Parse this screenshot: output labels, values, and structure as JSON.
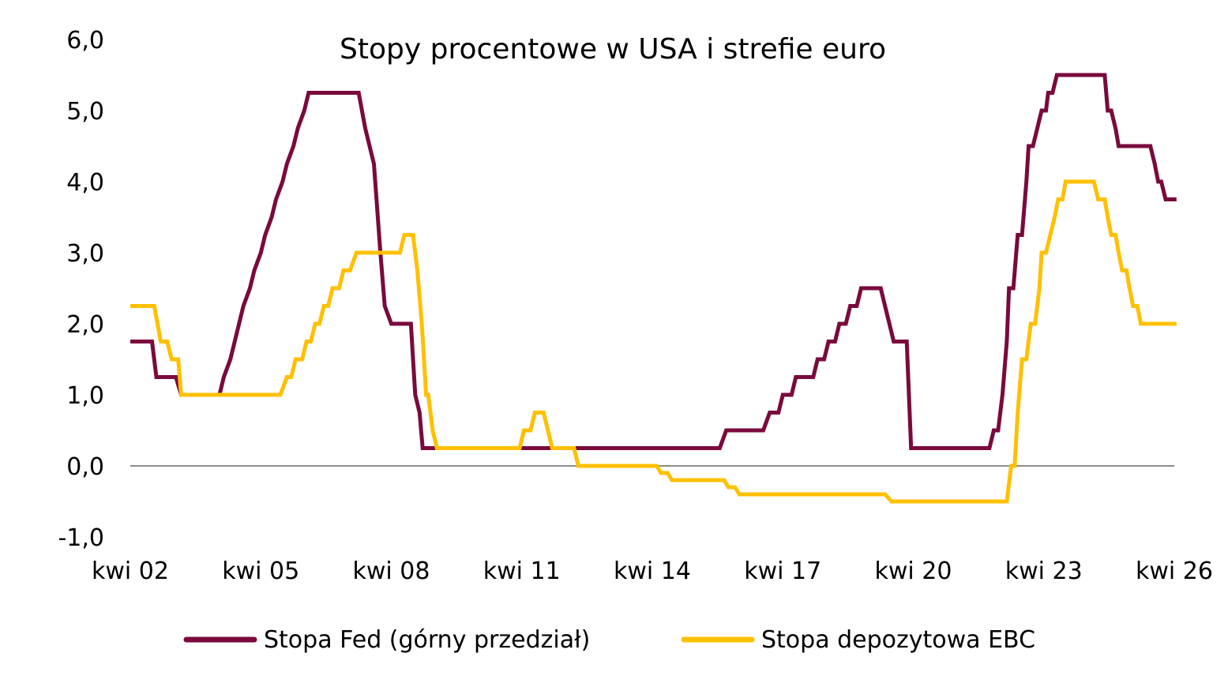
{
  "chart_data": {
    "type": "line",
    "title": "Stopy procentowe w USA i strefie euro",
    "xlabel": "",
    "ylabel": "",
    "ylim": [
      -1.0,
      6.0
    ],
    "yticks": [
      "-1,0",
      "0,0",
      "1,0",
      "2,0",
      "3,0",
      "4,0",
      "5,0",
      "6,0"
    ],
    "xlim": [
      2002.25,
      2026.25
    ],
    "xticks": [
      {
        "x": 2002.25,
        "label": "kwi 02"
      },
      {
        "x": 2005.25,
        "label": "kwi 05"
      },
      {
        "x": 2008.25,
        "label": "kwi 08"
      },
      {
        "x": 2011.25,
        "label": "kwi 11"
      },
      {
        "x": 2014.25,
        "label": "kwi 14"
      },
      {
        "x": 2017.25,
        "label": "kwi 17"
      },
      {
        "x": 2020.25,
        "label": "kwi 20"
      },
      {
        "x": 2023.25,
        "label": "kwi 23"
      },
      {
        "x": 2026.25,
        "label": "kwi 26"
      }
    ],
    "grid": false,
    "legend": "bottom",
    "series": [
      {
        "name": "Stopa Fed (górny przedział)",
        "color": "#7a0a3c",
        "points": [
          [
            2002.25,
            1.75
          ],
          [
            2002.75,
            1.75
          ],
          [
            2002.85,
            1.25
          ],
          [
            2003.3,
            1.25
          ],
          [
            2003.42,
            1.0
          ],
          [
            2004.3,
            1.0
          ],
          [
            2004.4,
            1.25
          ],
          [
            2004.55,
            1.5
          ],
          [
            2004.65,
            1.75
          ],
          [
            2004.75,
            2.0
          ],
          [
            2004.85,
            2.25
          ],
          [
            2005.0,
            2.5
          ],
          [
            2005.1,
            2.75
          ],
          [
            2005.25,
            3.0
          ],
          [
            2005.35,
            3.25
          ],
          [
            2005.5,
            3.5
          ],
          [
            2005.6,
            3.75
          ],
          [
            2005.75,
            4.0
          ],
          [
            2005.85,
            4.25
          ],
          [
            2006.0,
            4.5
          ],
          [
            2006.1,
            4.75
          ],
          [
            2006.25,
            5.0
          ],
          [
            2006.35,
            5.25
          ],
          [
            2007.5,
            5.25
          ],
          [
            2007.65,
            4.75
          ],
          [
            2007.75,
            4.5
          ],
          [
            2007.85,
            4.25
          ],
          [
            2008.0,
            3.0
          ],
          [
            2008.1,
            2.25
          ],
          [
            2008.25,
            2.0
          ],
          [
            2008.7,
            2.0
          ],
          [
            2008.8,
            1.0
          ],
          [
            2008.9,
            0.75
          ],
          [
            2008.97,
            0.25
          ],
          [
            2015.8,
            0.25
          ],
          [
            2015.95,
            0.5
          ],
          [
            2016.8,
            0.5
          ],
          [
            2016.95,
            0.75
          ],
          [
            2017.15,
            0.75
          ],
          [
            2017.25,
            1.0
          ],
          [
            2017.45,
            1.0
          ],
          [
            2017.55,
            1.25
          ],
          [
            2017.95,
            1.25
          ],
          [
            2018.05,
            1.5
          ],
          [
            2018.2,
            1.5
          ],
          [
            2018.3,
            1.75
          ],
          [
            2018.45,
            1.75
          ],
          [
            2018.55,
            2.0
          ],
          [
            2018.7,
            2.0
          ],
          [
            2018.8,
            2.25
          ],
          [
            2018.95,
            2.25
          ],
          [
            2019.05,
            2.5
          ],
          [
            2019.5,
            2.5
          ],
          [
            2019.6,
            2.25
          ],
          [
            2019.7,
            2.0
          ],
          [
            2019.8,
            1.75
          ],
          [
            2020.1,
            1.75
          ],
          [
            2020.2,
            0.25
          ],
          [
            2022.0,
            0.25
          ],
          [
            2022.1,
            0.5
          ],
          [
            2022.2,
            0.5
          ],
          [
            2022.3,
            1.0
          ],
          [
            2022.4,
            1.75
          ],
          [
            2022.45,
            2.5
          ],
          [
            2022.55,
            2.5
          ],
          [
            2022.65,
            3.25
          ],
          [
            2022.75,
            3.25
          ],
          [
            2022.85,
            4.0
          ],
          [
            2022.9,
            4.5
          ],
          [
            2023.0,
            4.5
          ],
          [
            2023.1,
            4.75
          ],
          [
            2023.2,
            5.0
          ],
          [
            2023.3,
            5.0
          ],
          [
            2023.35,
            5.25
          ],
          [
            2023.45,
            5.25
          ],
          [
            2023.55,
            5.5
          ],
          [
            2024.65,
            5.5
          ],
          [
            2024.72,
            5.0
          ],
          [
            2024.8,
            5.0
          ],
          [
            2024.9,
            4.75
          ],
          [
            2024.97,
            4.5
          ],
          [
            2025.7,
            4.5
          ],
          [
            2025.8,
            4.25
          ],
          [
            2025.88,
            4.0
          ],
          [
            2025.95,
            4.0
          ],
          [
            2026.05,
            3.75
          ],
          [
            2026.3,
            3.75
          ]
        ]
      },
      {
        "name": "Stopa depozytowa EBC",
        "color": "#ffc000",
        "points": [
          [
            2002.25,
            2.25
          ],
          [
            2002.8,
            2.25
          ],
          [
            2002.95,
            1.75
          ],
          [
            2003.1,
            1.75
          ],
          [
            2003.2,
            1.5
          ],
          [
            2003.35,
            1.5
          ],
          [
            2003.42,
            1.0
          ],
          [
            2005.7,
            1.0
          ],
          [
            2005.85,
            1.25
          ],
          [
            2005.95,
            1.25
          ],
          [
            2006.05,
            1.5
          ],
          [
            2006.2,
            1.5
          ],
          [
            2006.3,
            1.75
          ],
          [
            2006.4,
            1.75
          ],
          [
            2006.5,
            2.0
          ],
          [
            2006.6,
            2.0
          ],
          [
            2006.7,
            2.25
          ],
          [
            2006.8,
            2.25
          ],
          [
            2006.9,
            2.5
          ],
          [
            2007.05,
            2.5
          ],
          [
            2007.15,
            2.75
          ],
          [
            2007.3,
            2.75
          ],
          [
            2007.45,
            3.0
          ],
          [
            2008.45,
            3.0
          ],
          [
            2008.55,
            3.25
          ],
          [
            2008.75,
            3.25
          ],
          [
            2008.85,
            2.75
          ],
          [
            2008.95,
            2.0
          ],
          [
            2009.05,
            1.0
          ],
          [
            2009.1,
            1.0
          ],
          [
            2009.2,
            0.5
          ],
          [
            2009.3,
            0.25
          ],
          [
            2011.2,
            0.25
          ],
          [
            2011.3,
            0.5
          ],
          [
            2011.45,
            0.5
          ],
          [
            2011.55,
            0.75
          ],
          [
            2011.75,
            0.75
          ],
          [
            2011.85,
            0.5
          ],
          [
            2011.95,
            0.25
          ],
          [
            2012.45,
            0.25
          ],
          [
            2012.55,
            0.0
          ],
          [
            2014.35,
            0.0
          ],
          [
            2014.45,
            -0.1
          ],
          [
            2014.6,
            -0.1
          ],
          [
            2014.7,
            -0.2
          ],
          [
            2015.9,
            -0.2
          ],
          [
            2016.0,
            -0.3
          ],
          [
            2016.15,
            -0.3
          ],
          [
            2016.25,
            -0.4
          ],
          [
            2019.6,
            -0.4
          ],
          [
            2019.75,
            -0.5
          ],
          [
            2022.4,
            -0.5
          ],
          [
            2022.5,
            0.0
          ],
          [
            2022.58,
            0.0
          ],
          [
            2022.65,
            0.75
          ],
          [
            2022.75,
            1.5
          ],
          [
            2022.85,
            1.5
          ],
          [
            2022.95,
            2.0
          ],
          [
            2023.05,
            2.0
          ],
          [
            2023.15,
            2.5
          ],
          [
            2023.2,
            3.0
          ],
          [
            2023.3,
            3.0
          ],
          [
            2023.4,
            3.25
          ],
          [
            2023.5,
            3.5
          ],
          [
            2023.58,
            3.75
          ],
          [
            2023.68,
            3.75
          ],
          [
            2023.75,
            4.0
          ],
          [
            2024.4,
            4.0
          ],
          [
            2024.5,
            3.75
          ],
          [
            2024.65,
            3.75
          ],
          [
            2024.72,
            3.5
          ],
          [
            2024.8,
            3.25
          ],
          [
            2024.9,
            3.25
          ],
          [
            2024.97,
            3.0
          ],
          [
            2025.05,
            2.75
          ],
          [
            2025.15,
            2.75
          ],
          [
            2025.22,
            2.5
          ],
          [
            2025.3,
            2.25
          ],
          [
            2025.4,
            2.25
          ],
          [
            2025.48,
            2.0
          ],
          [
            2026.3,
            2.0
          ]
        ]
      }
    ]
  }
}
